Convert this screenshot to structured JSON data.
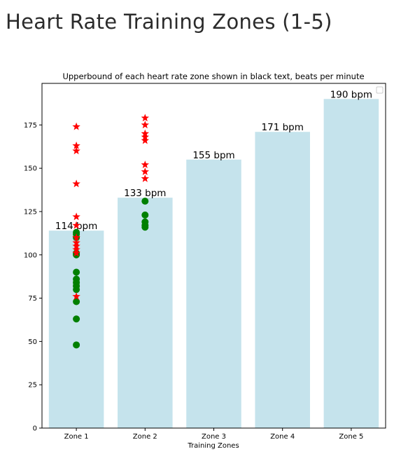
{
  "page": {
    "title": "Heart Rate Training Zones (1-5)"
  },
  "chart_data": {
    "type": "bar",
    "title": "Upperbound of each heart rate zone shown in black text, beats per minute",
    "xlabel": "Training Zones",
    "ylabel": "",
    "categories": [
      "Zone 1",
      "Zone 2",
      "Zone 3",
      "Zone 4",
      "Zone 5"
    ],
    "values": [
      114,
      133,
      155,
      171,
      190
    ],
    "bar_labels": [
      "114 bpm",
      "133 bpm",
      "155 bpm",
      "171 bpm",
      "190 bpm"
    ],
    "ylim": [
      0,
      199
    ],
    "yticks": [
      0,
      25,
      50,
      75,
      100,
      125,
      150,
      175
    ],
    "bar_color": "#c5e3ec",
    "grid": false,
    "legend": "top-right (empty)",
    "scatter_series": [
      {
        "marker": "circle",
        "color": "#008000",
        "points": [
          {
            "category": "Zone 1",
            "y": 48
          },
          {
            "category": "Zone 1",
            "y": 63
          },
          {
            "category": "Zone 1",
            "y": 73
          },
          {
            "category": "Zone 1",
            "y": 80
          },
          {
            "category": "Zone 1",
            "y": 82
          },
          {
            "category": "Zone 1",
            "y": 84
          },
          {
            "category": "Zone 1",
            "y": 86
          },
          {
            "category": "Zone 1",
            "y": 90
          },
          {
            "category": "Zone 1",
            "y": 100
          },
          {
            "category": "Zone 1",
            "y": 101
          },
          {
            "category": "Zone 1",
            "y": 110
          },
          {
            "category": "Zone 1",
            "y": 112
          },
          {
            "category": "Zone 1",
            "y": 113
          },
          {
            "category": "Zone 2",
            "y": 116
          },
          {
            "category": "Zone 2",
            "y": 117
          },
          {
            "category": "Zone 2",
            "y": 119
          },
          {
            "category": "Zone 2",
            "y": 123
          },
          {
            "category": "Zone 2",
            "y": 131
          }
        ]
      },
      {
        "marker": "star",
        "color": "#ff0000",
        "points": [
          {
            "category": "Zone 1",
            "y": 76
          },
          {
            "category": "Zone 1",
            "y": 101
          },
          {
            "category": "Zone 1",
            "y": 103
          },
          {
            "category": "Zone 1",
            "y": 105
          },
          {
            "category": "Zone 1",
            "y": 107
          },
          {
            "category": "Zone 1",
            "y": 110
          },
          {
            "category": "Zone 1",
            "y": 117
          },
          {
            "category": "Zone 1",
            "y": 122
          },
          {
            "category": "Zone 1",
            "y": 141
          },
          {
            "category": "Zone 1",
            "y": 160
          },
          {
            "category": "Zone 1",
            "y": 163
          },
          {
            "category": "Zone 1",
            "y": 174
          },
          {
            "category": "Zone 2",
            "y": 144
          },
          {
            "category": "Zone 2",
            "y": 148
          },
          {
            "category": "Zone 2",
            "y": 152
          },
          {
            "category": "Zone 2",
            "y": 166
          },
          {
            "category": "Zone 2",
            "y": 168
          },
          {
            "category": "Zone 2",
            "y": 170
          },
          {
            "category": "Zone 2",
            "y": 175
          },
          {
            "category": "Zone 2",
            "y": 179
          }
        ]
      }
    ]
  }
}
